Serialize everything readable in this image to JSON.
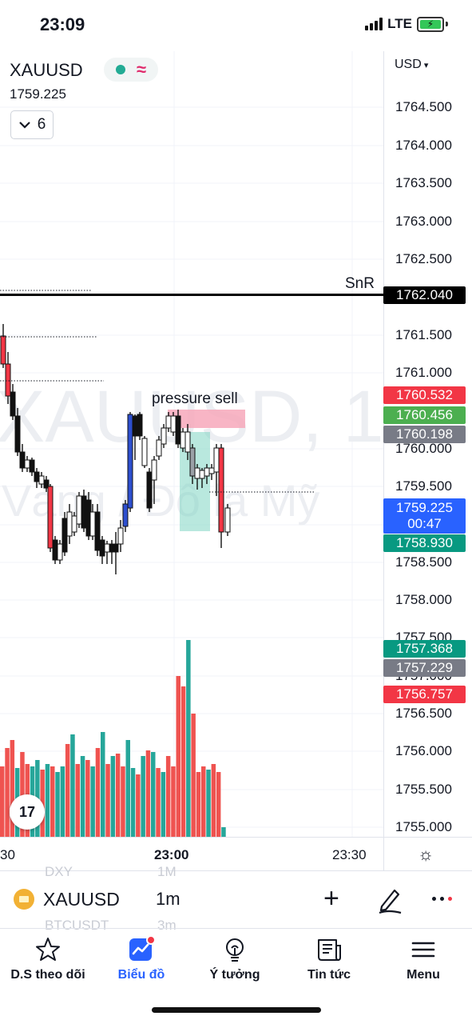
{
  "status": {
    "time": "23:09",
    "network": "LTE"
  },
  "chart": {
    "symbol": "XAUUSD",
    "price": "1759.225",
    "indicator_count": "6",
    "currency": "USD",
    "watermark_symbol": "XAUUSD, 1",
    "watermark_desc": "Vàng / Đô la Mỹ",
    "snr_label": "SnR",
    "annotation": "pressure sell",
    "price_ticks": [
      "1764.500",
      "1764.000",
      "1763.500",
      "1763.000",
      "1762.500",
      "1761.500",
      "1761.000",
      "1760.000",
      "1759.500",
      "1758.500",
      "1758.000",
      "1757.500",
      "1757.000",
      "1756.500",
      "1756.000",
      "1755.500",
      "1755.000"
    ],
    "price_tags": {
      "snr": "1762.040",
      "red1": "1760.532",
      "green1": "1760.456",
      "gray1": "1760.198",
      "current": "1759.225",
      "countdown": "00:47",
      "green2": "1758.930",
      "green3": "1757.368",
      "gray2": "1757.229",
      "red2": "1756.757"
    },
    "time_labels": [
      "30",
      "23:00",
      "23:30"
    ],
    "colors": {
      "up": "#22ab94",
      "down": "#f23645",
      "accent": "#2962ff"
    }
  },
  "instrument_bar": {
    "symbol": "XAUUSD",
    "timeframe": "1m",
    "ghost_top_symbol": "DXY",
    "ghost_top_tf": "1M",
    "ghost_bottom_symbol": "BTCUSDT",
    "ghost_bottom_tf": "3m"
  },
  "nav": [
    {
      "label": "D.S theo dõi",
      "icon": "star-icon"
    },
    {
      "label": "Biểu đồ",
      "icon": "chart-icon"
    },
    {
      "label": "Ý tưởng",
      "icon": "lightbulb-icon"
    },
    {
      "label": "Tin tức",
      "icon": "news-icon"
    },
    {
      "label": "Menu",
      "icon": "menu-icon"
    }
  ]
}
